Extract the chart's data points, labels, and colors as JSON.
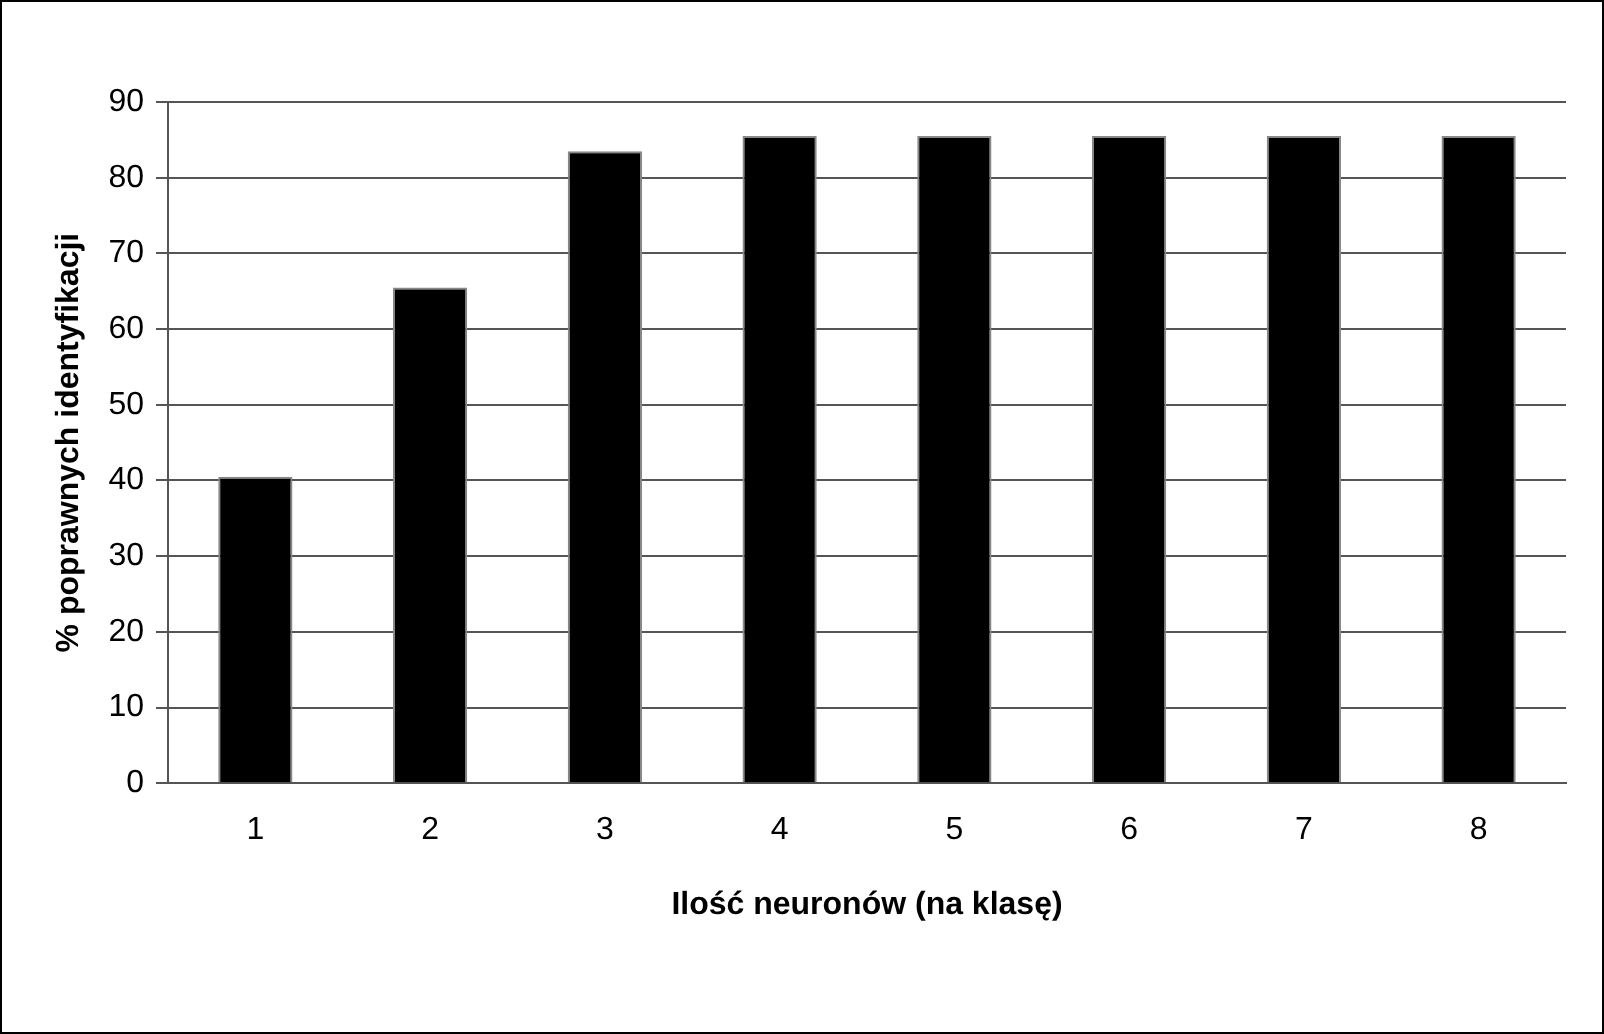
{
  "chart_data": {
    "type": "bar",
    "xlabel": "Ilość neuronów (na klasę)",
    "ylabel": "% poprawnych identyfikacji",
    "categories": [
      "1",
      "2",
      "3",
      "4",
      "5",
      "6",
      "7",
      "8"
    ],
    "values": [
      40.5,
      65.5,
      83.5,
      85.5,
      85.5,
      85.5,
      85.5,
      85.5
    ],
    "color": "#000000",
    "ylim": [
      0,
      90
    ],
    "yticks": [
      0,
      10,
      20,
      30,
      40,
      50,
      60,
      70,
      80,
      90
    ],
    "grid": "y",
    "legend": false
  }
}
